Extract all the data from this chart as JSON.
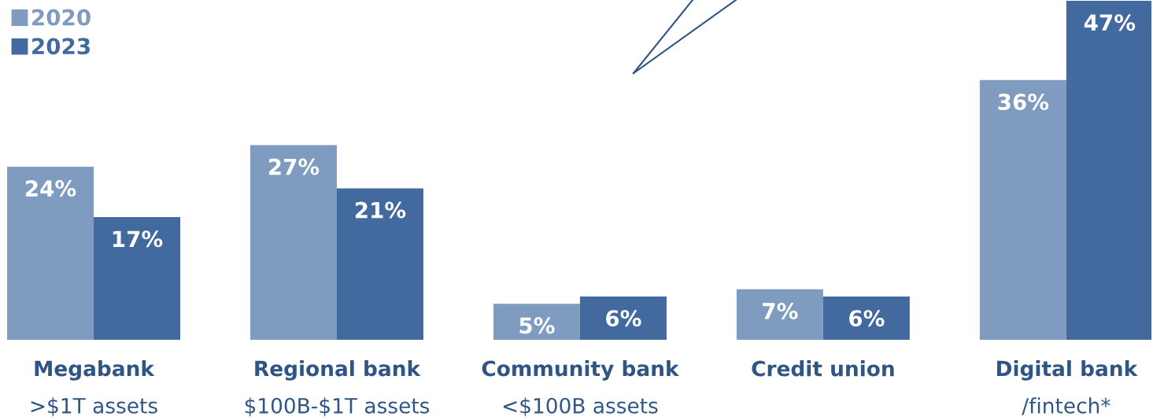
{
  "chart_data": {
    "type": "bar",
    "categories": [
      "Megabank\n>$1T assets",
      "Regional bank\n$100B-$1T assets",
      "Community bank\n<$100B assets",
      "Credit union",
      "Digital bank\n/fintech*"
    ],
    "series": [
      {
        "name": "2020",
        "color": "#7f9cc0",
        "values": [
          24,
          27,
          5,
          7,
          36
        ],
        "value_labels": [
          "24%",
          "27%",
          "5%",
          "7%",
          "36%"
        ]
      },
      {
        "name": "2023",
        "color": "#426a9e",
        "values": [
          17,
          21,
          6,
          6,
          47
        ],
        "value_labels": [
          "17%",
          "21%",
          "6%",
          "6%",
          "47%"
        ]
      }
    ],
    "ylim": [
      0,
      47
    ],
    "legend": "top left",
    "tick_labels": "x"
  }
}
